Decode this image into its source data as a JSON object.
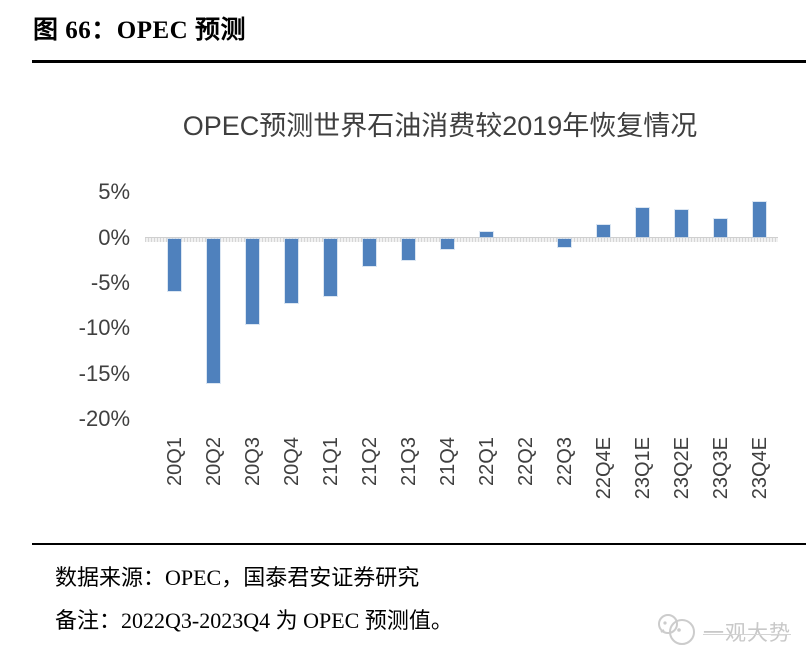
{
  "page": {
    "figure_label": "图 66：OPEC 预测",
    "source_line": "数据来源：OPEC，国泰君安证券研究",
    "note_line": "备注：2022Q3-2023Q4 为 OPEC 预测值。",
    "watermark_text": "一观大势"
  },
  "chart_data": {
    "type": "bar",
    "title": "OPEC预测世界石油消费较2019年恢复情况",
    "categories": [
      "20Q1",
      "20Q2",
      "20Q3",
      "20Q4",
      "21Q1",
      "21Q2",
      "21Q3",
      "21Q4",
      "22Q1",
      "22Q2",
      "22Q3",
      "22Q4E",
      "23Q1E",
      "23Q2E",
      "23Q3E",
      "23Q4E"
    ],
    "values": [
      -5.8,
      -15.9,
      -9.4,
      -7.1,
      -6.3,
      -3.0,
      -2.4,
      -1.2,
      0.6,
      0,
      -0.9,
      1.4,
      3.2,
      3.0,
      2.0,
      3.9
    ],
    "unit": "%",
    "xlabel": "",
    "ylabel": "",
    "ylim": [
      -20,
      5
    ],
    "yticks": [
      5,
      0,
      -5,
      -10,
      -15,
      -20
    ],
    "ytick_labels": [
      "5%",
      "0%",
      "-5%",
      "-10%",
      "-15%",
      "-20%"
    ],
    "grid": false,
    "legend": "none",
    "bar_color": "#4f81bd",
    "axis_color": "#d6d6d6",
    "label_color": "#404040"
  }
}
